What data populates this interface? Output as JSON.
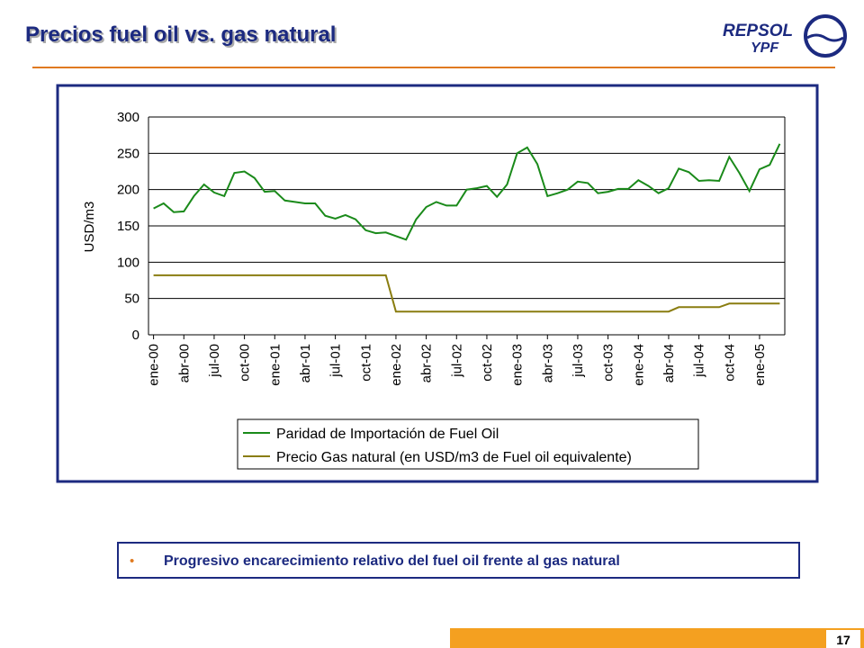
{
  "header": {
    "title": "Precios fuel oil vs. gas natural",
    "logo": [
      "REPSOL",
      "YPF"
    ]
  },
  "chart_data": {
    "type": "line",
    "ylabel": "USD/m3",
    "categories": [
      "ene-00",
      null,
      null,
      "abr-00",
      null,
      null,
      "jul-00",
      null,
      null,
      "oct-00",
      null,
      null,
      "ene-01",
      null,
      null,
      "abr-01",
      null,
      null,
      "jul-01",
      null,
      null,
      "oct-01",
      null,
      null,
      "ene-02",
      null,
      null,
      "abr-02",
      null,
      null,
      "jul-02",
      null,
      null,
      "oct-02",
      null,
      null,
      "ene-03",
      null,
      null,
      "abr-03",
      null,
      null,
      "jul-03",
      null,
      null,
      "oct-03",
      null,
      null,
      "ene-04",
      null,
      null,
      "abr-04",
      null,
      null,
      "jul-04",
      null,
      null,
      "oct-04",
      null,
      null,
      "ene-05",
      null,
      null
    ],
    "series": [
      {
        "name": "Paridad de Importación de Fuel Oil",
        "color": "#1a8a1a",
        "values": [
          174,
          181,
          169,
          170,
          191,
          207,
          196,
          191,
          223,
          225,
          216,
          197,
          198,
          185,
          183,
          181,
          181,
          164,
          160,
          165,
          159,
          144,
          140,
          141,
          136,
          131,
          159,
          176,
          183,
          178,
          178,
          200,
          202,
          205,
          190,
          207,
          250,
          258,
          235,
          191,
          195,
          200,
          211,
          209,
          195,
          197,
          201,
          201,
          213,
          205,
          195,
          202,
          229,
          224,
          212,
          213,
          212,
          245,
          223,
          198,
          228,
          234,
          263
        ]
      },
      {
        "name": "Precio Gas natural (en USD/m3 de Fuel oil equivalente)",
        "color": "#8a7d10",
        "values": [
          82,
          82,
          82,
          82,
          82,
          82,
          82,
          82,
          82,
          82,
          82,
          82,
          82,
          82,
          82,
          82,
          82,
          82,
          82,
          82,
          82,
          82,
          82,
          82,
          32,
          32,
          32,
          32,
          32,
          32,
          32,
          32,
          32,
          32,
          32,
          32,
          32,
          32,
          32,
          32,
          32,
          32,
          32,
          32,
          32,
          32,
          32,
          32,
          32,
          32,
          32,
          32,
          38,
          38,
          38,
          38,
          38,
          43,
          43,
          43,
          43,
          43,
          43
        ]
      }
    ],
    "ylim": [
      0,
      300
    ],
    "yticks": [
      0,
      50,
      100,
      150,
      200,
      250,
      300
    ],
    "grid": true
  },
  "bullet": "Progresivo encarecimiento relativo del fuel oil frente al gas natural",
  "page_number": "17"
}
